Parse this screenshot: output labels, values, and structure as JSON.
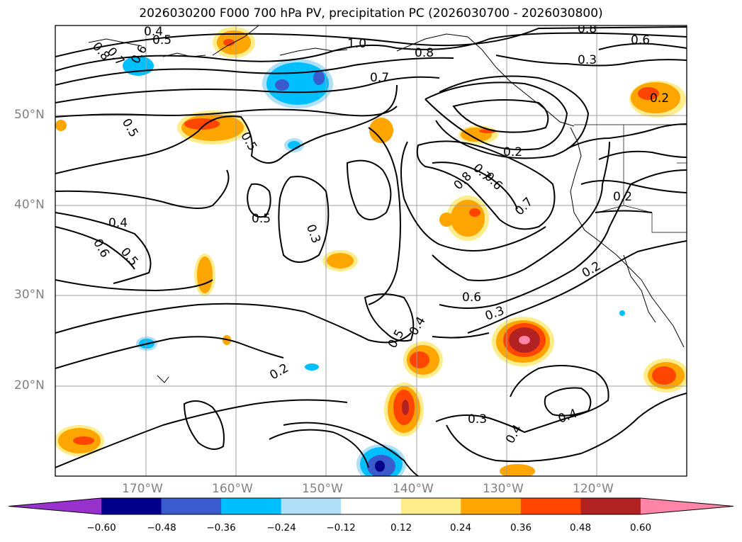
{
  "title": "2026030200 F000 700 hPa PV, precipitation PC (2026030700 - 2026030800)",
  "map": {
    "lat_ticks": [
      "50°N",
      "40°N",
      "30°N",
      "20°N"
    ],
    "lon_ticks": [
      "170°W",
      "160°W",
      "150°W",
      "140°W",
      "130°W",
      "120°W"
    ],
    "contour_labels": [
      {
        "text": "0.4"
      },
      {
        "text": "0.5"
      },
      {
        "text": "0.8"
      },
      {
        "text": "0.7"
      },
      {
        "text": "0.6"
      },
      {
        "text": "1.0"
      },
      {
        "text": "0.8"
      },
      {
        "text": "0.7"
      },
      {
        "text": "0.8"
      },
      {
        "text": "0.6"
      },
      {
        "text": "0.3"
      },
      {
        "text": "0.2"
      },
      {
        "text": "0.5"
      },
      {
        "text": "0.5"
      },
      {
        "text": "0.2"
      },
      {
        "text": "0.8"
      },
      {
        "text": "0.7"
      },
      {
        "text": "0.6"
      },
      {
        "text": "0.2"
      },
      {
        "text": "0.7"
      },
      {
        "text": "0.5"
      },
      {
        "text": "0.4"
      },
      {
        "text": "0.6"
      },
      {
        "text": "0.5"
      },
      {
        "text": "0.3"
      },
      {
        "text": "0.2"
      },
      {
        "text": "0.6"
      },
      {
        "text": "0.3"
      },
      {
        "text": "0.5"
      },
      {
        "text": "0.4"
      },
      {
        "text": "0.2"
      },
      {
        "text": "0.3"
      },
      {
        "text": "0.4"
      },
      {
        "text": "0.4"
      }
    ]
  },
  "colorbar": {
    "levels": [
      "−0.60",
      "−0.48",
      "−0.36",
      "−0.24",
      "−0.12",
      "0.12",
      "0.24",
      "0.36",
      "0.48",
      "0.60"
    ],
    "colors": [
      "#9932cc",
      "#00008b",
      "#3a5bcd",
      "#00bfff",
      "#b0e0f8",
      "#ffffff",
      "#ffec8b",
      "#ffa500",
      "#ff4500",
      "#b22222",
      "#ff85a8"
    ]
  }
}
